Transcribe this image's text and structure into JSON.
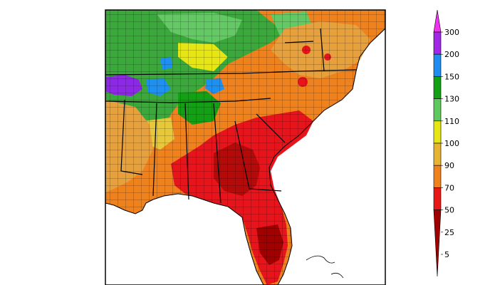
{
  "map": {
    "region": "Southeastern United States",
    "colors": {
      "c5": "#a00000",
      "c25": "#e8141c",
      "c50": "#f0781e",
      "c70": "#e6a03c",
      "c90": "#e8c33a",
      "c100": "#f0f032",
      "c110": "#64c864",
      "c130": "#14a014",
      "c150": "#1e90f0",
      "c200": "#8c28e6",
      "c300": "#f032f0"
    }
  },
  "legend": {
    "tick_labels": [
      "300",
      "200",
      "150",
      "130",
      "110",
      "100",
      "90",
      "70",
      "50",
      "25",
      "5"
    ],
    "colors": [
      "#f032f0",
      "#a028e6",
      "#1e8cf0",
      "#14a014",
      "#5fc85f",
      "#e6e614",
      "#e6b432",
      "#f0821e",
      "#e81818",
      "#a00000"
    ]
  }
}
